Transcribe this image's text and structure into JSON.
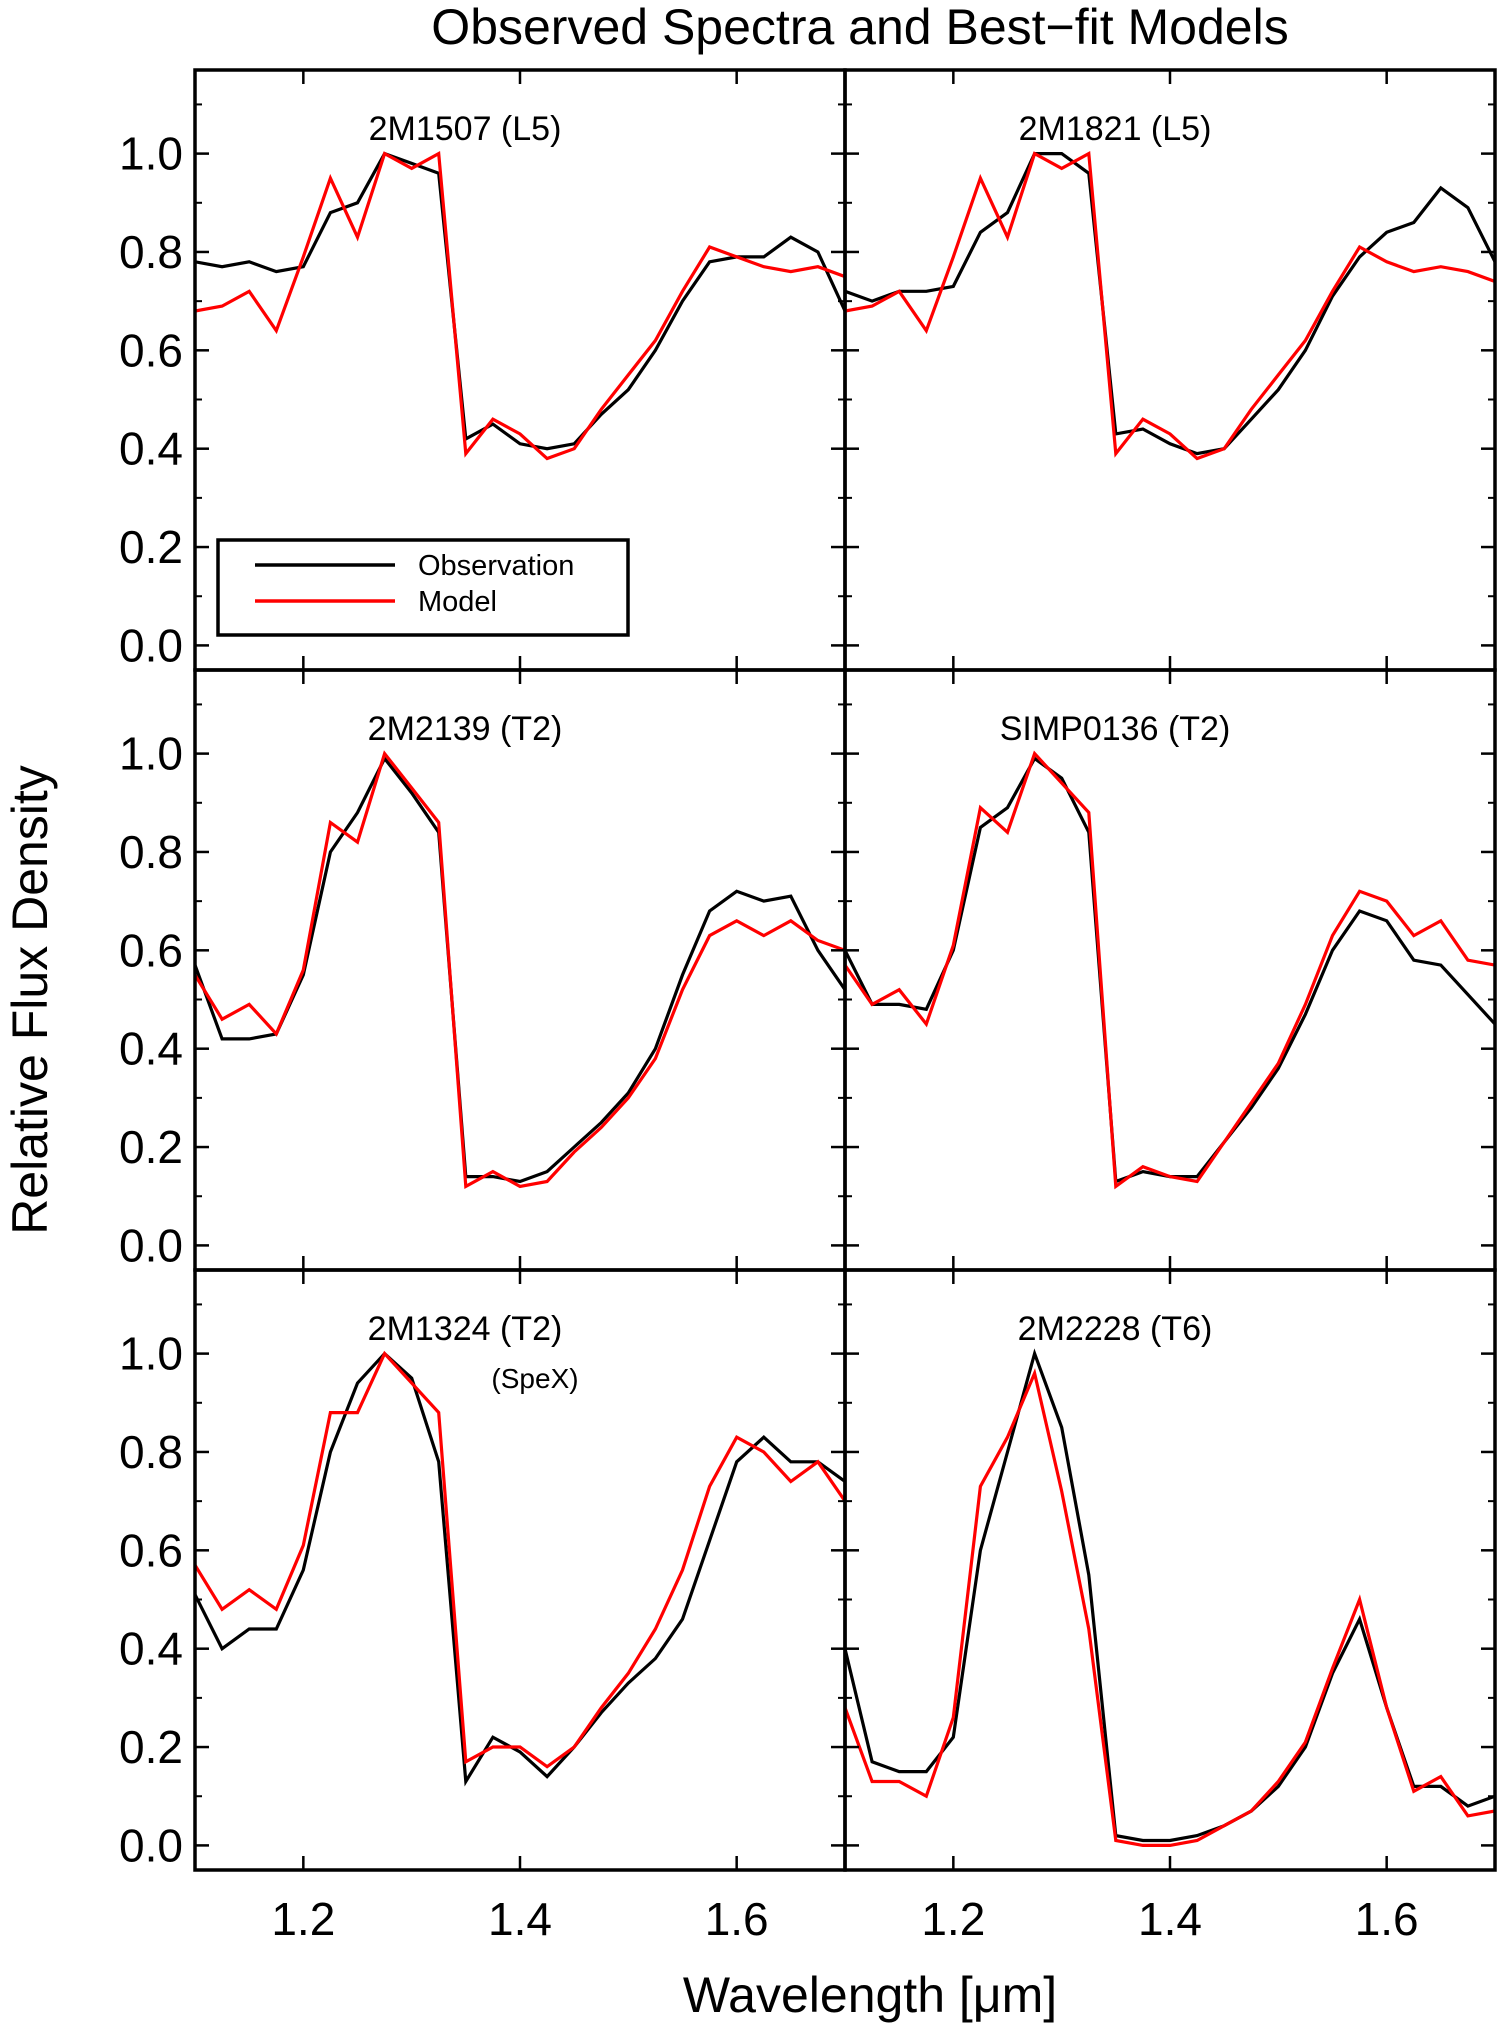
{
  "chart_data": {
    "type": "line",
    "title": "Observed Spectra and Best−fit Models",
    "xlabel": "Wavelength [μm]",
    "ylabel": "Relative Flux Density",
    "xlim": [
      1.1,
      1.7
    ],
    "ylim": [
      -0.05,
      1.17
    ],
    "x_ticks": [
      1.2,
      1.4,
      1.6
    ],
    "x_tick_labels": [
      "1.2",
      "1.4",
      "1.6"
    ],
    "y_ticks": [
      0.0,
      0.2,
      0.4,
      0.6,
      0.8,
      1.0
    ],
    "y_tick_labels": [
      "0.0",
      "0.2",
      "0.4",
      "0.6",
      "0.8",
      "1.0"
    ],
    "grid": false,
    "legend": {
      "placement": "lower-left (top-left panel)",
      "entries": [
        {
          "label": "Observation",
          "color": "#000000"
        },
        {
          "label": "Model",
          "color": "#ff0000"
        }
      ]
    },
    "colors": {
      "observation": "#000000",
      "model": "#ff0000"
    },
    "panels": [
      {
        "label": "2M1507 (L5)",
        "sublabel": "",
        "observation": {
          "x": [
            1.1,
            1.125,
            1.15,
            1.175,
            1.2,
            1.225,
            1.25,
            1.275,
            1.3,
            1.325,
            1.35,
            1.375,
            1.4,
            1.425,
            1.45,
            1.475,
            1.5,
            1.525,
            1.55,
            1.575,
            1.6,
            1.625,
            1.65,
            1.675,
            1.7
          ],
          "y": [
            0.78,
            0.77,
            0.78,
            0.76,
            0.77,
            0.88,
            0.9,
            1.0,
            0.98,
            0.96,
            0.42,
            0.45,
            0.41,
            0.4,
            0.41,
            0.47,
            0.52,
            0.6,
            0.7,
            0.78,
            0.79,
            0.79,
            0.83,
            0.8,
            0.68
          ]
        },
        "model": {
          "x": [
            1.1,
            1.125,
            1.15,
            1.175,
            1.2,
            1.225,
            1.25,
            1.275,
            1.3,
            1.325,
            1.35,
            1.375,
            1.4,
            1.425,
            1.45,
            1.475,
            1.5,
            1.525,
            1.55,
            1.575,
            1.6,
            1.625,
            1.65,
            1.675,
            1.7
          ],
          "y": [
            0.68,
            0.69,
            0.72,
            0.64,
            0.79,
            0.95,
            0.83,
            1.0,
            0.97,
            1.0,
            0.39,
            0.46,
            0.43,
            0.38,
            0.4,
            0.48,
            0.55,
            0.62,
            0.72,
            0.81,
            0.79,
            0.77,
            0.76,
            0.77,
            0.75
          ]
        }
      },
      {
        "label": "2M1821 (L5)",
        "sublabel": "",
        "observation": {
          "x": [
            1.1,
            1.125,
            1.15,
            1.175,
            1.2,
            1.225,
            1.25,
            1.275,
            1.3,
            1.325,
            1.35,
            1.375,
            1.4,
            1.425,
            1.45,
            1.475,
            1.5,
            1.525,
            1.55,
            1.575,
            1.6,
            1.625,
            1.65,
            1.675,
            1.7
          ],
          "y": [
            0.72,
            0.7,
            0.72,
            0.72,
            0.73,
            0.84,
            0.88,
            1.0,
            1.0,
            0.96,
            0.43,
            0.44,
            0.41,
            0.39,
            0.4,
            0.46,
            0.52,
            0.6,
            0.71,
            0.79,
            0.84,
            0.86,
            0.93,
            0.89,
            0.78
          ]
        },
        "model": {
          "x": [
            1.1,
            1.125,
            1.15,
            1.175,
            1.2,
            1.225,
            1.25,
            1.275,
            1.3,
            1.325,
            1.35,
            1.375,
            1.4,
            1.425,
            1.45,
            1.475,
            1.5,
            1.525,
            1.55,
            1.575,
            1.6,
            1.625,
            1.65,
            1.675,
            1.7
          ],
          "y": [
            0.68,
            0.69,
            0.72,
            0.64,
            0.79,
            0.95,
            0.83,
            1.0,
            0.97,
            1.0,
            0.39,
            0.46,
            0.43,
            0.38,
            0.4,
            0.48,
            0.55,
            0.62,
            0.72,
            0.81,
            0.78,
            0.76,
            0.77,
            0.76,
            0.74
          ]
        }
      },
      {
        "label": "2M2139 (T2)",
        "sublabel": "",
        "observation": {
          "x": [
            1.1,
            1.125,
            1.15,
            1.175,
            1.2,
            1.225,
            1.25,
            1.275,
            1.3,
            1.325,
            1.35,
            1.375,
            1.4,
            1.425,
            1.45,
            1.475,
            1.5,
            1.525,
            1.55,
            1.575,
            1.6,
            1.625,
            1.65,
            1.675,
            1.7
          ],
          "y": [
            0.57,
            0.42,
            0.42,
            0.43,
            0.55,
            0.8,
            0.88,
            0.99,
            0.92,
            0.84,
            0.14,
            0.14,
            0.13,
            0.15,
            0.2,
            0.25,
            0.31,
            0.4,
            0.55,
            0.68,
            0.72,
            0.7,
            0.71,
            0.6,
            0.52
          ]
        },
        "model": {
          "x": [
            1.1,
            1.125,
            1.15,
            1.175,
            1.2,
            1.225,
            1.25,
            1.275,
            1.3,
            1.325,
            1.35,
            1.375,
            1.4,
            1.425,
            1.45,
            1.475,
            1.5,
            1.525,
            1.55,
            1.575,
            1.6,
            1.625,
            1.65,
            1.675,
            1.7
          ],
          "y": [
            0.55,
            0.46,
            0.49,
            0.43,
            0.56,
            0.86,
            0.82,
            1.0,
            0.93,
            0.86,
            0.12,
            0.15,
            0.12,
            0.13,
            0.19,
            0.24,
            0.3,
            0.38,
            0.52,
            0.63,
            0.66,
            0.63,
            0.66,
            0.62,
            0.6
          ]
        }
      },
      {
        "label": "SIMP0136 (T2)",
        "sublabel": "",
        "observation": {
          "x": [
            1.1,
            1.125,
            1.15,
            1.175,
            1.2,
            1.225,
            1.25,
            1.275,
            1.3,
            1.325,
            1.35,
            1.375,
            1.4,
            1.425,
            1.45,
            1.475,
            1.5,
            1.525,
            1.55,
            1.575,
            1.6,
            1.625,
            1.65,
            1.675,
            1.7
          ],
          "y": [
            0.6,
            0.49,
            0.49,
            0.48,
            0.6,
            0.85,
            0.89,
            0.99,
            0.95,
            0.84,
            0.13,
            0.15,
            0.14,
            0.14,
            0.21,
            0.28,
            0.36,
            0.47,
            0.6,
            0.68,
            0.66,
            0.58,
            0.57,
            0.51,
            0.45
          ]
        },
        "model": {
          "x": [
            1.1,
            1.125,
            1.15,
            1.175,
            1.2,
            1.225,
            1.25,
            1.275,
            1.3,
            1.325,
            1.35,
            1.375,
            1.4,
            1.425,
            1.45,
            1.475,
            1.5,
            1.525,
            1.55,
            1.575,
            1.6,
            1.625,
            1.65,
            1.675,
            1.7
          ],
          "y": [
            0.57,
            0.49,
            0.52,
            0.45,
            0.61,
            0.89,
            0.84,
            1.0,
            0.94,
            0.88,
            0.12,
            0.16,
            0.14,
            0.13,
            0.21,
            0.29,
            0.37,
            0.49,
            0.63,
            0.72,
            0.7,
            0.63,
            0.66,
            0.58,
            0.57
          ]
        }
      },
      {
        "label": "2M1324 (T2)",
        "sublabel": "(SpeX)",
        "observation": {
          "x": [
            1.1,
            1.125,
            1.15,
            1.175,
            1.2,
            1.225,
            1.25,
            1.275,
            1.3,
            1.325,
            1.35,
            1.375,
            1.4,
            1.425,
            1.45,
            1.475,
            1.5,
            1.525,
            1.55,
            1.575,
            1.6,
            1.625,
            1.65,
            1.675,
            1.7
          ],
          "y": [
            0.51,
            0.4,
            0.44,
            0.44,
            0.56,
            0.8,
            0.94,
            1.0,
            0.95,
            0.78,
            0.13,
            0.22,
            0.19,
            0.14,
            0.2,
            0.27,
            0.33,
            0.38,
            0.46,
            0.62,
            0.78,
            0.83,
            0.78,
            0.78,
            0.74
          ]
        },
        "model": {
          "x": [
            1.1,
            1.125,
            1.15,
            1.175,
            1.2,
            1.225,
            1.25,
            1.275,
            1.3,
            1.325,
            1.35,
            1.375,
            1.4,
            1.425,
            1.45,
            1.475,
            1.5,
            1.525,
            1.55,
            1.575,
            1.6,
            1.625,
            1.65,
            1.675,
            1.7
          ],
          "y": [
            0.57,
            0.48,
            0.52,
            0.48,
            0.61,
            0.88,
            0.88,
            1.0,
            0.94,
            0.88,
            0.17,
            0.2,
            0.2,
            0.16,
            0.2,
            0.28,
            0.35,
            0.44,
            0.56,
            0.73,
            0.83,
            0.8,
            0.74,
            0.78,
            0.7
          ]
        }
      },
      {
        "label": "2M2228 (T6)",
        "sublabel": "",
        "observation": {
          "x": [
            1.1,
            1.125,
            1.15,
            1.175,
            1.2,
            1.225,
            1.25,
            1.275,
            1.3,
            1.325,
            1.35,
            1.375,
            1.4,
            1.425,
            1.45,
            1.475,
            1.5,
            1.525,
            1.55,
            1.575,
            1.6,
            1.625,
            1.65,
            1.675,
            1.7
          ],
          "y": [
            0.4,
            0.17,
            0.15,
            0.15,
            0.22,
            0.6,
            0.8,
            1.0,
            0.85,
            0.55,
            0.02,
            0.01,
            0.01,
            0.02,
            0.04,
            0.07,
            0.12,
            0.2,
            0.35,
            0.46,
            0.28,
            0.12,
            0.12,
            0.08,
            0.1
          ]
        },
        "model": {
          "x": [
            1.1,
            1.125,
            1.15,
            1.175,
            1.2,
            1.225,
            1.25,
            1.275,
            1.3,
            1.325,
            1.35,
            1.375,
            1.4,
            1.425,
            1.45,
            1.475,
            1.5,
            1.525,
            1.55,
            1.575,
            1.6,
            1.625,
            1.65,
            1.675,
            1.7
          ],
          "y": [
            0.28,
            0.13,
            0.13,
            0.1,
            0.26,
            0.73,
            0.83,
            0.96,
            0.72,
            0.44,
            0.01,
            0.0,
            0.0,
            0.01,
            0.04,
            0.07,
            0.13,
            0.21,
            0.36,
            0.5,
            0.28,
            0.11,
            0.14,
            0.06,
            0.07
          ]
        }
      }
    ]
  }
}
